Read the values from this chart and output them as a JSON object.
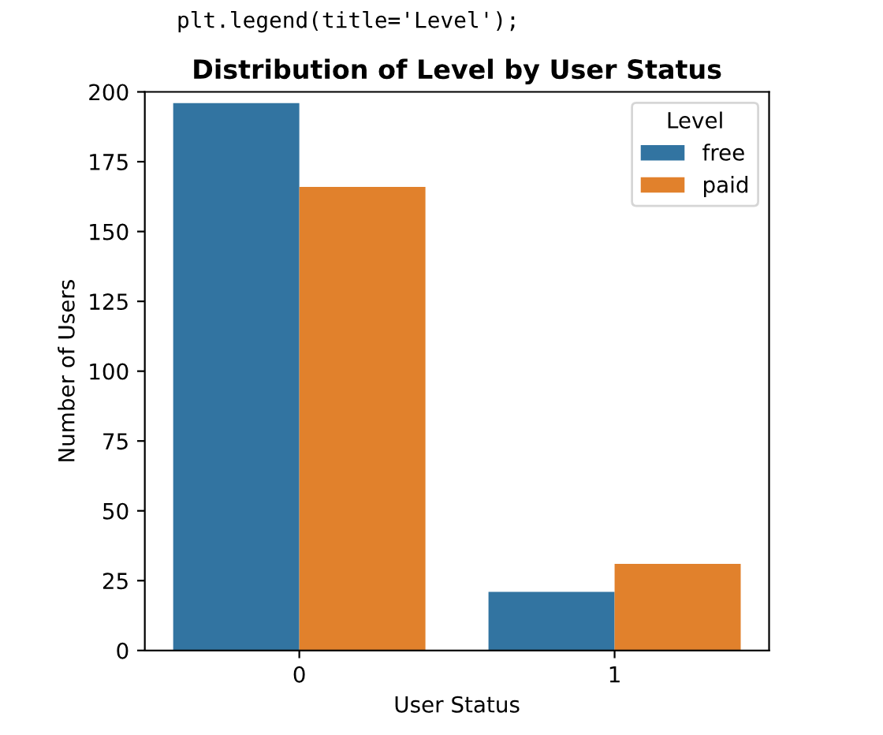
{
  "chart_data": {
    "type": "bar",
    "title": "Distribution of Level by User Status",
    "xlabel": "User Status",
    "ylabel": "Number of Users",
    "legend_title": "Level",
    "categories": [
      "0",
      "1"
    ],
    "series": [
      {
        "name": "free",
        "color": "#3274a1",
        "values": [
          196,
          21
        ]
      },
      {
        "name": "paid",
        "color": "#e1812c",
        "values": [
          166,
          31
        ]
      }
    ],
    "ylim": [
      0,
      200
    ],
    "yticks": [
      0,
      25,
      50,
      75,
      100,
      125,
      150,
      175,
      200
    ],
    "legend": "top right",
    "grid": false,
    "annotations": [
      "plt.legend(title='Level');"
    ]
  }
}
